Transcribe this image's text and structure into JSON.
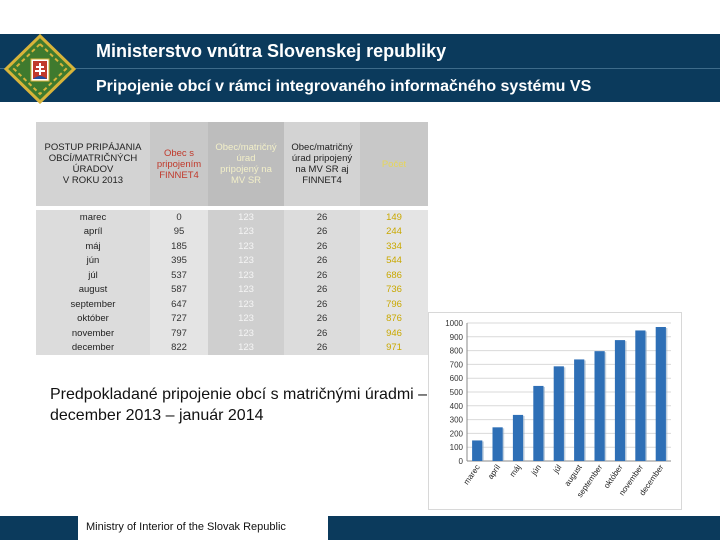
{
  "header": {
    "title": "Ministerstvo vnútra Slovenskej republiky",
    "subtitle": "Pripojenie obcí v rámci integrovaného informačného systému VS"
  },
  "table": {
    "headers": [
      [
        "POSTUP PRIPÁJANIA",
        "OBCÍ/MATRIČNÝCH",
        "ÚRADOV",
        "V ROKU 2013"
      ],
      [
        "Obec s",
        "pripojením",
        "FINNET4"
      ],
      [
        "Obec/matričný",
        "úrad",
        "pripojený na",
        "MV SR"
      ],
      [
        "Obec/matričný",
        "úrad pripojený",
        "na MV SR aj",
        "FINNET4"
      ],
      [
        "Počet"
      ]
    ],
    "rows": [
      [
        "marec",
        "0",
        "123",
        "26",
        "149"
      ],
      [
        "apríl",
        "95",
        "123",
        "26",
        "244"
      ],
      [
        "máj",
        "185",
        "123",
        "26",
        "334"
      ],
      [
        "jún",
        "395",
        "123",
        "26",
        "544"
      ],
      [
        "júl",
        "537",
        "123",
        "26",
        "686"
      ],
      [
        "august",
        "587",
        "123",
        "26",
        "736"
      ],
      [
        "september",
        "647",
        "123",
        "26",
        "796"
      ],
      [
        "október",
        "727",
        "123",
        "26",
        "876"
      ],
      [
        "november",
        "797",
        "123",
        "26",
        "946"
      ],
      [
        "december",
        "822",
        "123",
        "26",
        "971"
      ]
    ]
  },
  "caption": "Predpokladané pripojenie obcí s matričnými úradmi – december 2013 – január 2014",
  "footer": "Ministry of Interior of the Slovak Republic",
  "colors": {
    "header_bg": "#0b3a5c",
    "bar": "#2e6fb6",
    "logo_gold": "#d8b43a",
    "logo_green": "#3f7a2e"
  },
  "chart_data": {
    "type": "bar",
    "categories": [
      "marec",
      "apríl",
      "máj",
      "jún",
      "júl",
      "august",
      "september",
      "október",
      "november",
      "december"
    ],
    "values": [
      149,
      244,
      334,
      544,
      686,
      736,
      796,
      876,
      946,
      971
    ],
    "ylim": [
      0,
      1000
    ],
    "yticks": [
      "0",
      "100",
      "200",
      "300",
      "400",
      "500",
      "600",
      "700",
      "800",
      "900",
      "1000"
    ],
    "title": "",
    "xlabel": "",
    "ylabel": ""
  }
}
